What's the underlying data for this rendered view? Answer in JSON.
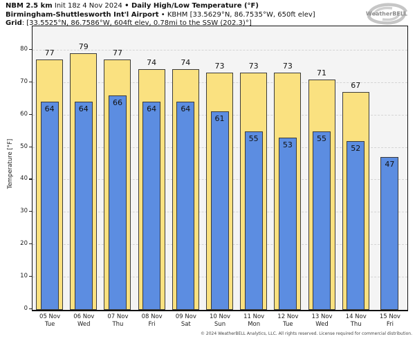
{
  "header": {
    "line1_bold1": "NBM 2.5 km",
    "line1_regular": " Init 18z 4 Nov 2024 ",
    "line1_bold2": "• Daily High/Low Temperature (°F)",
    "line2_bold": "Birmingham-Shuttlesworth Int'l Airport",
    "line2_regular": " • KBHM [33.5629°N, 86.7535°W, 650ft elev]",
    "line3_bold": "Grid",
    "line3_regular": ": [33.5525°N, 86.7586°W, 604ft elev, 0.78mi to the SSW (202.3)°]"
  },
  "logo": {
    "text": "WeatherBELL"
  },
  "footer": {
    "copyright": "© 2024 WeatherBELL Analytics, LLC. All rights reserved. License required for commercial distribution."
  },
  "chart_data": {
    "type": "bar",
    "title": "Daily High/Low Temperature (°F)",
    "ylabel": "Temperature [°F]",
    "ylim": [
      0,
      87.0
    ],
    "yticks": [
      0,
      10,
      20,
      30,
      40,
      50,
      60,
      70,
      80
    ],
    "grid": true,
    "legend_position": "none",
    "plot_bg": "#f4f4f4",
    "gridline_color": "#d4d4d4",
    "bar_edge_color": "#3a3a3a",
    "categories": [
      "05 Nov",
      "06 Nov",
      "07 Nov",
      "08 Nov",
      "09 Nov",
      "10 Nov",
      "11 Nov",
      "12 Nov",
      "13 Nov",
      "14 Nov",
      "15 Nov"
    ],
    "weekdays": [
      "Tue",
      "Wed",
      "Thu",
      "Fri",
      "Sat",
      "Sun",
      "Mon",
      "Tue",
      "Wed",
      "Thu",
      "Fri"
    ],
    "series": [
      {
        "name": "High",
        "color": "#fae180",
        "values": [
          77,
          79,
          77,
          74,
          74,
          73,
          73,
          73,
          71,
          67,
          null
        ]
      },
      {
        "name": "Low",
        "color": "#5c8de1",
        "values": [
          64,
          64,
          66,
          64,
          64,
          61,
          55,
          53,
          55,
          52,
          47
        ]
      }
    ]
  }
}
